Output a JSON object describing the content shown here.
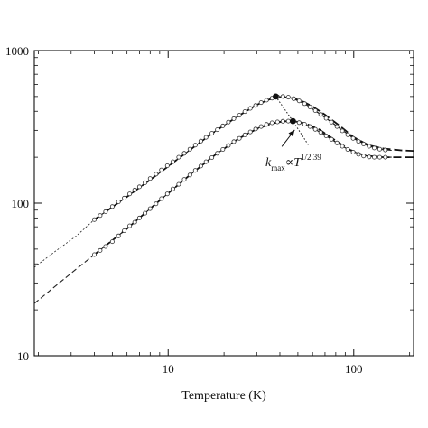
{
  "chart_data": {
    "type": "scatter",
    "xscale": "log",
    "yscale": "log",
    "xlim": [
      1.9,
      210
    ],
    "ylim": [
      10,
      1000
    ],
    "xlabel": "Temperature (K)",
    "ylabel": "",
    "x_ticks": [
      {
        "value": 10,
        "label": "10"
      },
      {
        "value": 100,
        "label": "100"
      }
    ],
    "y_ticks": [
      {
        "value": 10,
        "label": "10"
      },
      {
        "value": 100,
        "label": "100"
      },
      {
        "value": 1000,
        "label": "1000"
      }
    ],
    "grid": false,
    "annotation": {
      "k": "k",
      "sub": "max",
      "prop": "∝T",
      "sup": "1/2.39",
      "arrow_from": [
        41,
        235
      ],
      "arrow_to": [
        48,
        302
      ]
    },
    "maxima": [
      {
        "x": 38,
        "y": 500
      },
      {
        "x": 47,
        "y": 345
      }
    ],
    "dotted_trend": [
      [
        38,
        500
      ],
      [
        47,
        345
      ],
      [
        57,
        240
      ]
    ],
    "series": [
      {
        "marker": "circle-open",
        "points": [
          [
            4.0,
            78
          ],
          [
            4.3,
            83
          ],
          [
            4.6,
            88
          ],
          [
            5.0,
            95
          ],
          [
            5.4,
            102
          ],
          [
            5.8,
            108
          ],
          [
            6.2,
            115
          ],
          [
            6.6,
            122
          ],
          [
            7.0,
            128
          ],
          [
            7.5,
            136
          ],
          [
            8.0,
            145
          ],
          [
            8.6,
            155
          ],
          [
            9.2,
            165
          ],
          [
            9.9,
            176
          ],
          [
            10.6,
            187
          ],
          [
            11.4,
            200
          ],
          [
            12.2,
            212
          ],
          [
            13.1,
            226
          ],
          [
            14.0,
            240
          ],
          [
            15.0,
            255
          ],
          [
            16.0,
            270
          ],
          [
            17.2,
            287
          ],
          [
            18.4,
            303
          ],
          [
            19.7,
            321
          ],
          [
            21.1,
            340
          ],
          [
            22.6,
            358
          ],
          [
            24.2,
            377
          ],
          [
            25.9,
            398
          ],
          [
            27.7,
            418
          ],
          [
            29.6,
            437
          ],
          [
            31.7,
            456
          ],
          [
            33.9,
            473
          ],
          [
            36.3,
            488
          ],
          [
            38.8,
            498
          ],
          [
            41.5,
            500
          ],
          [
            44.4,
            495
          ],
          [
            47.5,
            484
          ],
          [
            50.8,
            468
          ],
          [
            54.3,
            449
          ],
          [
            58.1,
            427
          ],
          [
            62.1,
            404
          ],
          [
            66.4,
            381
          ],
          [
            71.0,
            360
          ],
          [
            75.9,
            340
          ],
          [
            81.2,
            318
          ],
          [
            86.8,
            298
          ],
          [
            92.8,
            281
          ],
          [
            99.2,
            266
          ],
          [
            106,
            254
          ],
          [
            113,
            244
          ],
          [
            121,
            236
          ],
          [
            129,
            230
          ],
          [
            138,
            226
          ],
          [
            148,
            223
          ]
        ],
        "fit_solid": [
          [
            4.0,
            78
          ],
          [
            6.0,
            110
          ],
          [
            9.0,
            158
          ],
          [
            13.0,
            222
          ],
          [
            18.0,
            297
          ],
          [
            24.0,
            374
          ],
          [
            30.0,
            441
          ],
          [
            35.0,
            480
          ],
          [
            38.0,
            497
          ],
          [
            42.0,
            500
          ],
          [
            47.0,
            485
          ],
          [
            55.0,
            445
          ],
          [
            65.0,
            388
          ],
          [
            75.0,
            343
          ],
          [
            85.0,
            306
          ],
          [
            100,
            265
          ],
          [
            120,
            237
          ],
          [
            140,
            225
          ],
          [
            160,
            222
          ]
        ],
        "fit_dashed": [
          [
            4.0,
            78
          ],
          [
            6.0,
            110
          ],
          [
            9.0,
            158
          ],
          [
            13.0,
            222
          ],
          [
            18.0,
            297
          ],
          [
            24.0,
            374
          ],
          [
            30.0,
            441
          ],
          [
            35.0,
            478
          ],
          [
            40.0,
            495
          ],
          [
            46.0,
            490
          ],
          [
            52.0,
            470
          ],
          [
            60.0,
            430
          ],
          [
            70.0,
            380
          ],
          [
            85.0,
            318
          ],
          [
            100,
            270
          ],
          [
            120,
            240
          ],
          [
            145,
            228
          ],
          [
            180,
            222
          ],
          [
            210,
            220
          ]
        ],
        "low_t_extrapolation": [
          [
            1.9,
            38
          ],
          [
            2.5,
            49
          ],
          [
            3.2,
            61
          ],
          [
            4.0,
            78
          ]
        ]
      },
      {
        "marker": "circle-open",
        "points": [
          [
            4.0,
            46
          ],
          [
            4.3,
            49
          ],
          [
            4.6,
            52
          ],
          [
            5.0,
            56
          ],
          [
            5.4,
            61
          ],
          [
            5.8,
            66
          ],
          [
            6.2,
            71
          ],
          [
            6.6,
            75
          ],
          [
            7.0,
            80
          ],
          [
            7.5,
            86
          ],
          [
            8.0,
            92
          ],
          [
            8.6,
            99
          ],
          [
            9.2,
            107
          ],
          [
            9.9,
            115
          ],
          [
            10.6,
            124
          ],
          [
            11.4,
            133
          ],
          [
            12.2,
            143
          ],
          [
            13.1,
            153
          ],
          [
            14.0,
            164
          ],
          [
            15.0,
            175
          ],
          [
            16.0,
            187
          ],
          [
            17.2,
            199
          ],
          [
            18.4,
            212
          ],
          [
            19.7,
            225
          ],
          [
            21.1,
            239
          ],
          [
            22.6,
            253
          ],
          [
            24.2,
            266
          ],
          [
            25.9,
            280
          ],
          [
            27.7,
            293
          ],
          [
            29.6,
            306
          ],
          [
            31.7,
            318
          ],
          [
            33.9,
            328
          ],
          [
            36.3,
            336
          ],
          [
            38.8,
            341
          ],
          [
            41.5,
            344
          ],
          [
            44.4,
            345
          ],
          [
            47.5,
            343
          ],
          [
            50.8,
            337
          ],
          [
            54.3,
            329
          ],
          [
            58.1,
            318
          ],
          [
            62.1,
            305
          ],
          [
            66.4,
            291
          ],
          [
            71.0,
            276
          ],
          [
            75.9,
            262
          ],
          [
            81.2,
            248
          ],
          [
            86.8,
            236
          ],
          [
            92.8,
            225
          ],
          [
            99.2,
            216
          ],
          [
            106,
            209
          ],
          [
            113,
            204
          ],
          [
            121,
            201
          ],
          [
            129,
            200
          ],
          [
            138,
            200
          ],
          [
            148,
            200
          ]
        ],
        "fit_solid": [
          [
            4.0,
            46
          ],
          [
            6.0,
            68
          ],
          [
            9.0,
            104
          ],
          [
            13.0,
            152
          ],
          [
            18.0,
            208
          ],
          [
            24.0,
            265
          ],
          [
            30.0,
            308
          ],
          [
            35.0,
            332
          ],
          [
            40.0,
            343
          ],
          [
            45.0,
            346
          ],
          [
            50.0,
            340
          ],
          [
            58.0,
            318
          ],
          [
            68.0,
            286
          ],
          [
            80.0,
            251
          ],
          [
            95.0,
            222
          ],
          [
            115,
            205
          ],
          [
            140,
            200
          ],
          [
            160,
            200
          ]
        ],
        "fit_dashed": [
          [
            4.0,
            46
          ],
          [
            6.0,
            68
          ],
          [
            9.0,
            104
          ],
          [
            13.0,
            152
          ],
          [
            18.0,
            208
          ],
          [
            24.0,
            265
          ],
          [
            30.0,
            306
          ],
          [
            36.0,
            332
          ],
          [
            42.0,
            344
          ],
          [
            48.0,
            344
          ],
          [
            55.0,
            333
          ],
          [
            65.0,
            305
          ],
          [
            78.0,
            262
          ],
          [
            95.0,
            224
          ],
          [
            115,
            205
          ],
          [
            145,
            200
          ],
          [
            180,
            200
          ],
          [
            210,
            200
          ]
        ],
        "low_t_extrapolation": [
          [
            1.9,
            22
          ],
          [
            2.5,
            29
          ],
          [
            3.2,
            37
          ],
          [
            4.0,
            46
          ]
        ]
      }
    ]
  }
}
